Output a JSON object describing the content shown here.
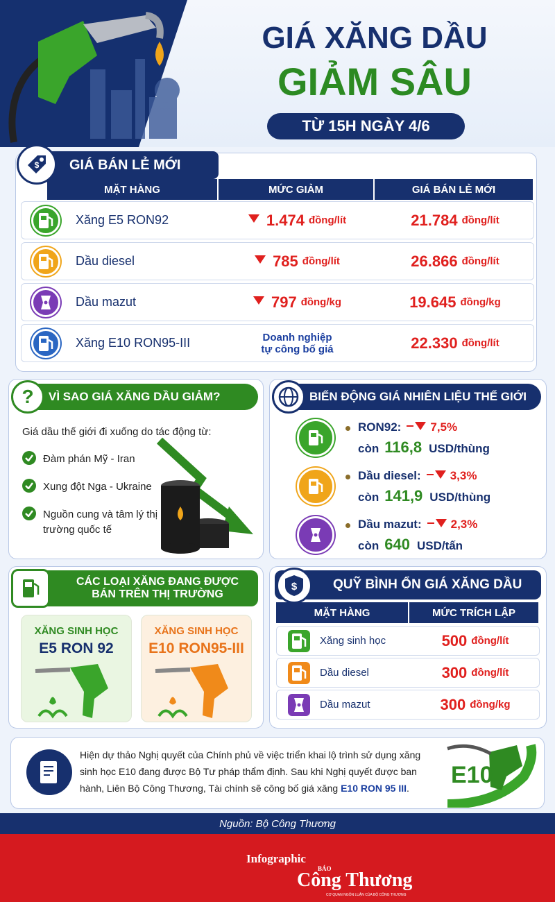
{
  "header": {
    "title_line1": "GIÁ XĂNG DẦU",
    "title_line2": "GIẢM SÂU",
    "subtitle": "TỪ 15H NGÀY 4/6"
  },
  "retail": {
    "title": "GIÁ BÁN LẺ MỚI",
    "columns": [
      "MẶT HÀNG",
      "MỨC GIẢM",
      "GIÁ BÁN LẺ MỚI"
    ],
    "rows": [
      {
        "name": "Xăng E5 RON92",
        "decrease": "1.474",
        "decrease_unit": "đồng/lít",
        "price": "21.784",
        "price_unit": "đồng/lít"
      },
      {
        "name": "Dầu diesel",
        "decrease": "785",
        "decrease_unit": "đồng/lít",
        "price": "26.866",
        "price_unit": "đồng/lít"
      },
      {
        "name": "Dầu mazut",
        "decrease": "797",
        "decrease_unit": "đồng/kg",
        "price": "19.645",
        "price_unit": "đồng/kg"
      },
      {
        "name": "Xăng E10 RON95-III",
        "decrease_note": [
          "Doanh nghiệp",
          "tự công bố giá"
        ],
        "price": "22.330",
        "price_unit": "đồng/lít"
      }
    ]
  },
  "why": {
    "title": "VÌ SAO GIÁ XĂNG DẦU GIẢM?",
    "intro": "Giá dầu thế giới đi xuống do tác động từ:",
    "items": [
      "Đàm phán Mỹ - Iran",
      "Xung đột Nga - Ukraine",
      "Nguồn cung và tâm lý thị trường quốc tế"
    ]
  },
  "world": {
    "title": "BIẾN ĐỘNG GIÁ NHIÊN LIỆU THẾ GIỚI",
    "items": [
      {
        "name": "RON92:",
        "change": "7,5%",
        "prefix": "còn",
        "value": "116,8",
        "unit": "USD/thùng"
      },
      {
        "name": "Dầu diesel:",
        "change": "3,3%",
        "prefix": "còn",
        "value": "141,9",
        "unit": "USD/thùng"
      },
      {
        "name": "Dầu mazut:",
        "change": "2,3%",
        "prefix": "còn",
        "value": "640",
        "unit": "USD/tấn"
      }
    ]
  },
  "types": {
    "title": [
      "CÁC LOẠI XĂNG ĐANG ĐƯỢC",
      "BÁN TRÊN THỊ TRƯỜNG"
    ],
    "cards": [
      {
        "label": "XĂNG SINH HỌC",
        "name": "E5 RON 92"
      },
      {
        "label": "XĂNG SINH HỌC",
        "name": "E10 RON95-III"
      }
    ]
  },
  "fund": {
    "title": "QUỸ BÌNH ỔN GIÁ XĂNG DẦU",
    "columns": [
      "MẶT HÀNG",
      "MỨC TRÍCH LẬP"
    ],
    "rows": [
      {
        "name": "Xăng sinh học",
        "value": "500",
        "unit": "đồng/lít"
      },
      {
        "name": "Dầu diesel",
        "value": "300",
        "unit": "đồng/lít"
      },
      {
        "name": "Dầu mazut",
        "value": "300",
        "unit": "đồng/kg"
      }
    ]
  },
  "note": {
    "text_before": "Hiện dự thảo Nghị quyết của Chính phủ về việc triển khai lộ trình sử dụng xăng sinh học E10 đang được Bộ Tư pháp thẩm định. Sau khi Nghị quyết được ban hành, Liên Bộ Công Thương, Tài chính sẽ công bố giá xăng ",
    "highlight": "E10 RON 95 III",
    "text_after": ".",
    "badge": "E10"
  },
  "source": "Nguồn: Bộ Công Thương",
  "footer": {
    "label": "Infographic",
    "brand_small": "BÁO",
    "brand": "Công Thương",
    "tagline": "CƠ QUAN NGÔN LUẬN CỦA BỘ CÔNG THƯƠNG"
  }
}
